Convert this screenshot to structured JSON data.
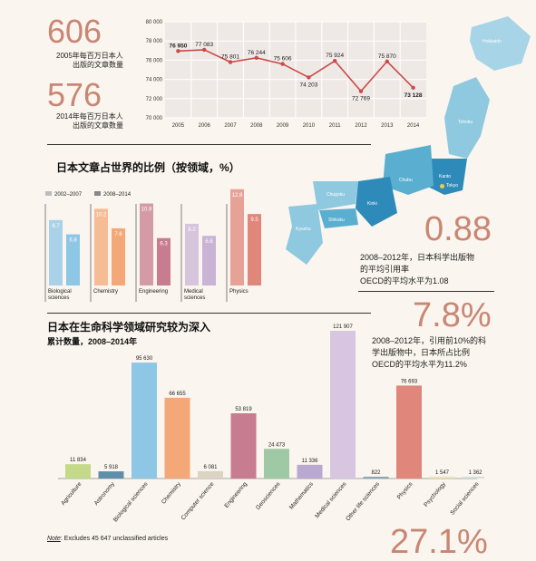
{
  "stats": {
    "articles_2005": {
      "value": "606",
      "label_line1": "2005年每百万日本人",
      "label_line2": "出版的文章数量"
    },
    "articles_2014": {
      "value": "576",
      "label_line1": "2014年每百万日本人",
      "label_line2": "出版的文章数量"
    },
    "citation": {
      "value": "0.88",
      "line1": "2008–2012年，日本科学出版物",
      "line2": "的平均引用率",
      "line3": "OECD的平均水平为1.08"
    },
    "top10": {
      "value": "7.8%",
      "line1": "2008–2012年，引用前10%的科",
      "line2": "学出版物中，日本所占比例",
      "line3": "OECD的平均水平为11.2%"
    },
    "bottom": {
      "value": "27.1%"
    }
  },
  "map": {
    "labels": [
      "Hokkaido",
      "Tohoku",
      "Kanto",
      "Chubu",
      "Kinki",
      "Chugoku",
      "Shikoku",
      "Kyushu",
      "Tokyo"
    ],
    "colors": {
      "light": "#8ec9df",
      "mid": "#5aaed0",
      "dark": "#2e8ab8",
      "hokkaido": "#a7d4e6"
    }
  },
  "chart_data": [
    {
      "type": "line",
      "x": [
        "2005",
        "2006",
        "2007",
        "2008",
        "2009",
        "2010",
        "2011",
        "2012",
        "2013",
        "2014"
      ],
      "values": [
        76950,
        77083,
        75801,
        76244,
        75606,
        74203,
        75924,
        72769,
        75870,
        73128
      ],
      "value_labels": [
        "76 950",
        "77 083",
        "75 801",
        "76 244",
        "75 606",
        "74 203",
        "75 924",
        "72 769",
        "75 870",
        "73 128"
      ],
      "yticks": [
        "80 000",
        "78 000",
        "76 000",
        "74 000",
        "72 000",
        "70 000"
      ],
      "ylim": [
        70000,
        80000
      ],
      "color": "#c94a4a"
    },
    {
      "type": "bar",
      "title": "日本文章占世界的比例（按领域，%）",
      "legend": [
        "2002–2007",
        "2008–2014"
      ],
      "categories": [
        "Biological sciences",
        "Chemistry",
        "Engineering",
        "Medical sciences",
        "Physics"
      ],
      "series": [
        {
          "name": "2002–2007",
          "values": [
            8.7,
            10.2,
            10.9,
            8.2,
            12.8
          ]
        },
        {
          "name": "2008–2014",
          "values": [
            6.8,
            7.6,
            6.3,
            6.6,
            9.5
          ]
        }
      ],
      "colors": [
        "#8ec6e6",
        "#f4a877",
        "#c77c8f",
        "#c9b4d6",
        "#e0867a"
      ]
    },
    {
      "type": "bar",
      "title": "日本在生命科学领域研究较为深入",
      "subtitle": "累计数量，2008–2014年",
      "categories": [
        "Agriculture",
        "Astronomy",
        "Biological sciences",
        "Chemistry",
        "Computer science",
        "Engineering",
        "Geosciences",
        "Mathematics",
        "Medical sciences",
        "Other life sciences",
        "Physics",
        "Psychology",
        "Social sciences"
      ],
      "values": [
        11834,
        5918,
        95630,
        66655,
        6081,
        53819,
        24473,
        11336,
        121907,
        822,
        76693,
        1547,
        1362
      ],
      "value_labels": [
        "11 834",
        "5 918",
        "95 630",
        "66 655",
        "6 081",
        "53 819",
        "24 473",
        "11 336",
        "121 907",
        "822",
        "76 693",
        "1 547",
        "1 362"
      ],
      "colors": [
        "#c5d98a",
        "#5f8fa8",
        "#8ec6e6",
        "#f4a877",
        "#ddd3c4",
        "#c77c8f",
        "#9fc9a5",
        "#b9a8cf",
        "#d8c6e0",
        "#8aa7b5",
        "#e0867a",
        "#e9e2bd",
        "#cfe0dc"
      ],
      "note_label": "Note",
      "note": ": Excludes 45 647 unclassified articles"
    }
  ]
}
